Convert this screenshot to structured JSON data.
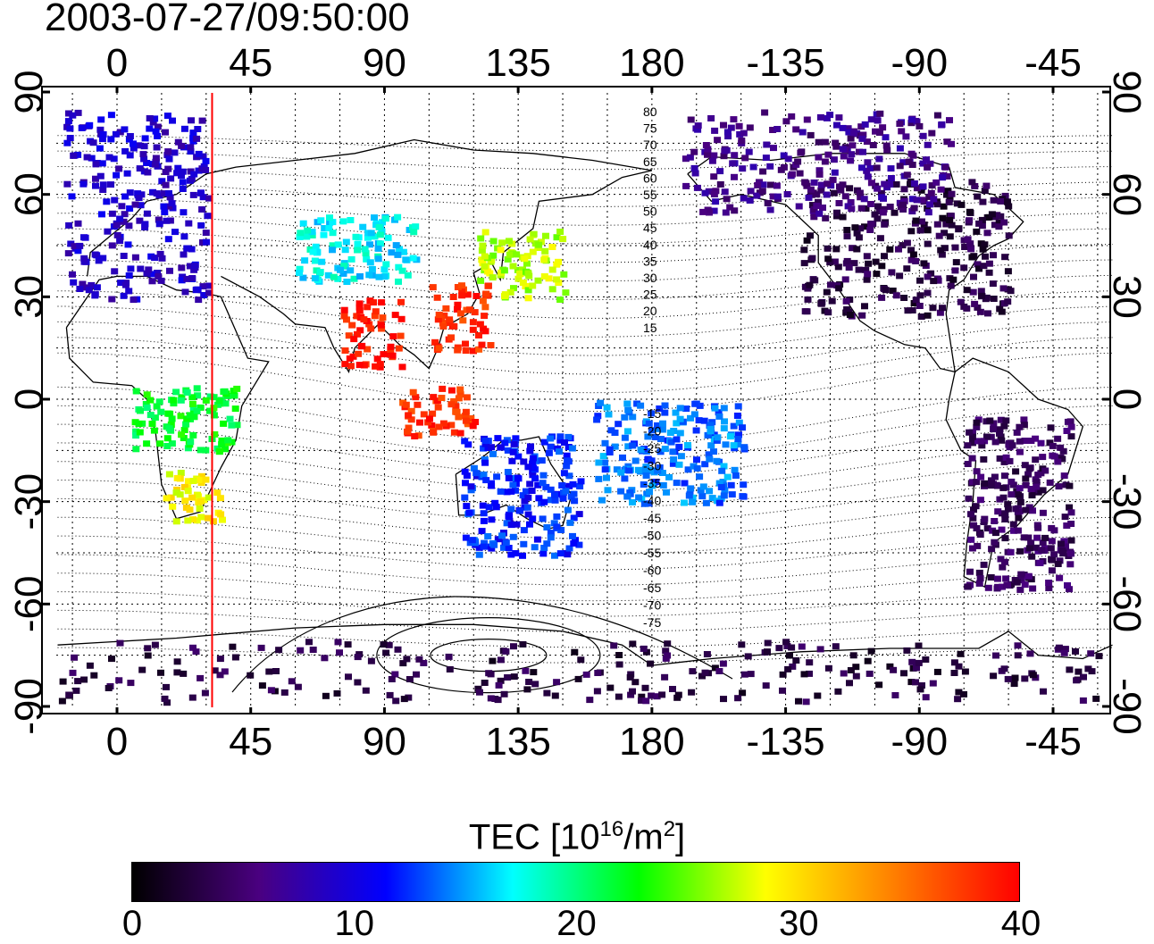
{
  "title": "2003-07-27/09:50:00",
  "map": {
    "projection": "equirectangular, longitude 0 to 360 starting at -20",
    "longitude_ticks": [
      "0",
      "45",
      "90",
      "135",
      "180",
      "-135",
      "-90",
      "-45"
    ],
    "latitude_ticks": [
      "90",
      "60",
      "30",
      "0",
      "-30",
      "-60",
      "-90"
    ],
    "graticule": "dotted every 15 degrees",
    "terminator_line": {
      "longitude": 32,
      "color": "#ff0000"
    },
    "contour_labels_north": [
      "80",
      "75",
      "70",
      "65",
      "60",
      "55",
      "50",
      "45",
      "40",
      "35",
      "30",
      "25",
      "20",
      "15"
    ],
    "contour_labels_south": [
      "-15",
      "-20",
      "-25",
      "-30",
      "-35",
      "-40",
      "-45",
      "-50",
      "-55",
      "-60",
      "-65",
      "-70",
      "-75"
    ]
  },
  "colorbar": {
    "title_prefix": "TEC  [10",
    "title_exp1": "16",
    "title_mid": "/m",
    "title_exp2": "2",
    "title_suffix": "]",
    "range": [
      0,
      40
    ],
    "ticks": [
      "0",
      "10",
      "20",
      "30",
      "40"
    ],
    "colors": [
      "#000000",
      "#4a0080",
      "#0000ff",
      "#00ffff",
      "#00ff00",
      "#ffff00",
      "#ff8000",
      "#ff0000"
    ]
  },
  "tec_regions": [
    {
      "name": "europe",
      "lon": [
        -18,
        30
      ],
      "lat": [
        30,
        85
      ],
      "value": 9
    },
    {
      "name": "north-america",
      "lon": [
        -130,
        -60
      ],
      "lat": [
        25,
        65
      ],
      "value": 3
    },
    {
      "name": "alaska-canada",
      "lon": [
        -170,
        -80
      ],
      "lat": [
        55,
        85
      ],
      "value": 6
    },
    {
      "name": "japan-korea",
      "lon": [
        120,
        150
      ],
      "lat": [
        30,
        50
      ],
      "value": 27
    },
    {
      "name": "east-china",
      "lon": [
        105,
        125
      ],
      "lat": [
        15,
        35
      ],
      "value": 38
    },
    {
      "name": "india",
      "lon": [
        75,
        95
      ],
      "lat": [
        10,
        30
      ],
      "value": 39
    },
    {
      "name": "indonesia",
      "lon": [
        95,
        120
      ],
      "lat": [
        -10,
        5
      ],
      "value": 38
    },
    {
      "name": "south-africa",
      "lon": [
        15,
        35
      ],
      "lat": [
        -35,
        -20
      ],
      "value": 29
    },
    {
      "name": "australia",
      "lon": [
        115,
        155
      ],
      "lat": [
        -45,
        -10
      ],
      "value": 12
    },
    {
      "name": "south-america",
      "lon": [
        -75,
        -40
      ],
      "lat": [
        -55,
        -5
      ],
      "value": 4
    },
    {
      "name": "antarctica",
      "lon": [
        -20,
        340
      ],
      "lat": [
        -88,
        -70
      ],
      "value": 3
    },
    {
      "name": "central-asia",
      "lon": [
        60,
        100
      ],
      "lat": [
        35,
        55
      ],
      "value": 17
    },
    {
      "name": "pacific-islands",
      "lon": [
        160,
        210
      ],
      "lat": [
        -30,
        0
      ],
      "value": 14
    },
    {
      "name": "africa-central",
      "lon": [
        5,
        40
      ],
      "lat": [
        -15,
        5
      ],
      "value": 22
    }
  ]
}
